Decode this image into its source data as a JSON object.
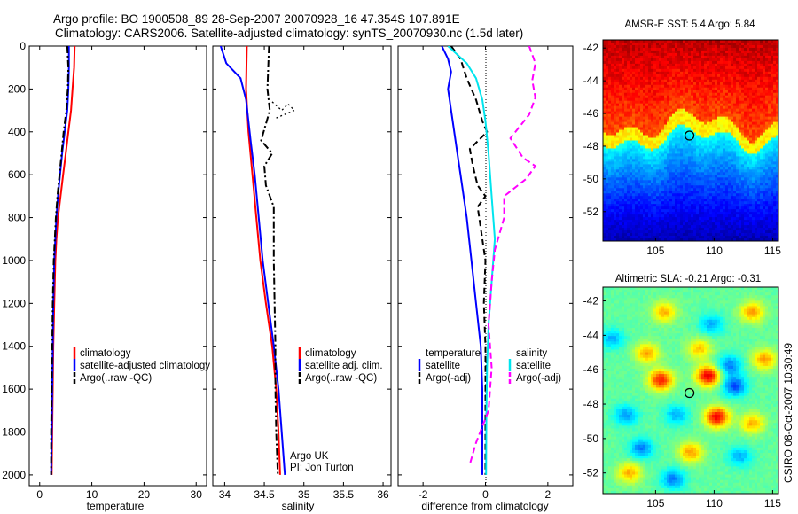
{
  "header": {
    "line1": "Argo profile: BO 1900508_89 28-Sep-2007 20070928_16 47.354S 107.891E",
    "line2": "Climatology: CARS2006. Satellite-adjusted climatology: synTS_20070930.nc (1.5d later)"
  },
  "credit": "CSIRO 08-Oct-2007 10:30:49",
  "colors": {
    "red": "#ff0000",
    "blue": "#0000ff",
    "black": "#000000",
    "cyan": "#00e5ee",
    "magenta": "#ff00ff"
  },
  "chart_data": [
    {
      "type": "line",
      "id": "temperature",
      "xlabel": "temperature",
      "ylabel": "",
      "xlim": [
        -2,
        32
      ],
      "ylim": [
        2050,
        0
      ],
      "xticks": [
        0,
        10,
        20,
        30
      ],
      "yticks": [
        0,
        200,
        400,
        600,
        800,
        1000,
        1200,
        1400,
        1600,
        1800,
        2000
      ],
      "legend_position": "lower-right",
      "legend": [
        "climatology",
        "satellite-adjusted climatology",
        "Argo(..raw -QC)"
      ],
      "series": [
        {
          "name": "climatology",
          "color": "red",
          "dash": "solid",
          "points": [
            [
              6.7,
              0
            ],
            [
              6.6,
              100
            ],
            [
              6.3,
              200
            ],
            [
              6.0,
              300
            ],
            [
              5.5,
              400
            ],
            [
              5.0,
              500
            ],
            [
              4.5,
              600
            ],
            [
              4.0,
              700
            ],
            [
              3.5,
              800
            ],
            [
              3.2,
              900
            ],
            [
              3.0,
              1000
            ],
            [
              2.8,
              1200
            ],
            [
              2.6,
              1400
            ],
            [
              2.5,
              1600
            ],
            [
              2.4,
              1800
            ],
            [
              2.3,
              2000
            ]
          ]
        },
        {
          "name": "satellite-adjusted climatology",
          "color": "blue",
          "dash": "solid",
          "points": [
            [
              5.6,
              0
            ],
            [
              5.6,
              100
            ],
            [
              5.5,
              200
            ],
            [
              5.3,
              300
            ],
            [
              4.8,
              400
            ],
            [
              4.3,
              500
            ],
            [
              3.9,
              600
            ],
            [
              3.5,
              700
            ],
            [
              3.2,
              800
            ],
            [
              3.0,
              900
            ],
            [
              2.8,
              1000
            ],
            [
              2.6,
              1200
            ],
            [
              2.5,
              1400
            ],
            [
              2.4,
              1600
            ],
            [
              2.3,
              1800
            ],
            [
              2.2,
              2000
            ]
          ]
        },
        {
          "name": "Argo(..raw -QC)",
          "color": "black",
          "dash": "dashdot",
          "points": [
            [
              5.3,
              0
            ],
            [
              5.5,
              100
            ],
            [
              5.4,
              200
            ],
            [
              5.1,
              300
            ],
            [
              4.6,
              400
            ],
            [
              4.2,
              500
            ],
            [
              3.8,
              600
            ],
            [
              3.4,
              700
            ],
            [
              3.1,
              800
            ],
            [
              2.9,
              900
            ],
            [
              2.7,
              1000
            ],
            [
              2.5,
              1200
            ],
            [
              2.4,
              1400
            ],
            [
              2.3,
              1600
            ],
            [
              2.2,
              1800
            ],
            [
              2.2,
              2000
            ]
          ]
        }
      ]
    },
    {
      "type": "line",
      "id": "salinity",
      "xlabel": "salinity",
      "ylabel": "",
      "xlim": [
        33.85,
        36.1
      ],
      "ylim": [
        2050,
        0
      ],
      "xticks": [
        34,
        34.5,
        35,
        35.5,
        36
      ],
      "legend_position": "lower-right",
      "legend": [
        "climatology",
        "satellite adj. clim.",
        "Argo(..raw -QC)"
      ],
      "annotations": [
        "Argo UK",
        "PI: Jon Turton"
      ],
      "series": [
        {
          "name": "climatology",
          "color": "red",
          "dash": "solid",
          "points": [
            [
              34.28,
              0
            ],
            [
              34.27,
              200
            ],
            [
              34.3,
              400
            ],
            [
              34.35,
              600
            ],
            [
              34.4,
              800
            ],
            [
              34.45,
              1000
            ],
            [
              34.52,
              1200
            ],
            [
              34.6,
              1400
            ],
            [
              34.65,
              1600
            ],
            [
              34.68,
              1800
            ],
            [
              34.7,
              2000
            ]
          ]
        },
        {
          "name": "satellite adj. clim.",
          "color": "blue",
          "dash": "solid",
          "points": [
            [
              33.95,
              0
            ],
            [
              34.02,
              80
            ],
            [
              34.2,
              150
            ],
            [
              34.27,
              250
            ],
            [
              34.3,
              350
            ],
            [
              34.33,
              450
            ],
            [
              34.38,
              600
            ],
            [
              34.43,
              800
            ],
            [
              34.48,
              1000
            ],
            [
              34.55,
              1200
            ],
            [
              34.62,
              1400
            ],
            [
              34.68,
              1600
            ],
            [
              34.72,
              1800
            ],
            [
              34.76,
              2000
            ]
          ]
        },
        {
          "name": "Argo(..raw -QC)",
          "color": "black",
          "dash": "dashdot",
          "points": [
            [
              34.56,
              0
            ],
            [
              34.55,
              100
            ],
            [
              34.54,
              200
            ],
            [
              34.57,
              300
            ],
            [
              34.46,
              440
            ],
            [
              34.6,
              500
            ],
            [
              34.5,
              560
            ],
            [
              34.52,
              650
            ],
            [
              34.62,
              750
            ],
            [
              34.62,
              1000
            ],
            [
              34.63,
              1200
            ],
            [
              34.64,
              1400
            ],
            [
              34.64,
              1600
            ],
            [
              34.65,
              1800
            ],
            [
              34.67,
              2000
            ]
          ]
        },
        {
          "name": "",
          "color": "black",
          "dash": "dotted",
          "points": [
            [
              34.6,
              260
            ],
            [
              34.72,
              300
            ],
            [
              34.8,
              270
            ],
            [
              34.88,
              300
            ],
            [
              34.75,
              320
            ],
            [
              34.62,
              340
            ]
          ]
        }
      ]
    },
    {
      "type": "line",
      "id": "difference",
      "xlabel": "difference from climatology",
      "ylabel": "",
      "xlim": [
        -2.8,
        2.8
      ],
      "ylim": [
        2050,
        0
      ],
      "xticks": [
        -2,
        0,
        2
      ],
      "legend_position": "lower-left",
      "legend_groups": [
        {
          "title": "temperature",
          "items": [
            "satellite",
            "Argo(-adj)"
          ]
        },
        {
          "title": "salinity",
          "items": [
            "satellite",
            "Argo(-adj)"
          ]
        }
      ],
      "series": [
        {
          "name": "satellite",
          "group": "temperature",
          "color": "blue",
          "dash": "solid",
          "points": [
            [
              -1.4,
              0
            ],
            [
              -1.2,
              60
            ],
            [
              -1.1,
              120
            ],
            [
              -1.2,
              200
            ],
            [
              -1.1,
              300
            ],
            [
              -1.0,
              400
            ],
            [
              -0.9,
              500
            ],
            [
              -0.8,
              600
            ],
            [
              -0.7,
              700
            ],
            [
              -0.6,
              800
            ],
            [
              -0.45,
              1000
            ],
            [
              -0.3,
              1200
            ],
            [
              -0.15,
              1400
            ],
            [
              -0.1,
              1600
            ],
            [
              -0.1,
              1800
            ],
            [
              -0.1,
              2000
            ]
          ]
        },
        {
          "name": "Argo(-adj)",
          "group": "temperature",
          "color": "black",
          "dash": "dashed",
          "points": [
            [
              -1.1,
              0
            ],
            [
              -0.8,
              60
            ],
            [
              -0.6,
              150
            ],
            [
              -0.3,
              250
            ],
            [
              -0.1,
              350
            ],
            [
              0.05,
              400
            ],
            [
              -0.5,
              480
            ],
            [
              -0.4,
              560
            ],
            [
              -0.25,
              650
            ],
            [
              0.0,
              700
            ],
            [
              -0.25,
              750
            ],
            [
              -0.1,
              900
            ],
            [
              0.0,
              1000
            ],
            [
              -0.05,
              1200
            ],
            [
              0.0,
              1400
            ],
            [
              0.0,
              1600
            ],
            [
              0.0,
              2000
            ]
          ]
        },
        {
          "name": "satellite",
          "group": "salinity",
          "color": "cyan",
          "dash": "solid",
          "points": [
            [
              -1.2,
              0
            ],
            [
              -0.9,
              40
            ],
            [
              -0.6,
              80
            ],
            [
              -0.3,
              150
            ],
            [
              -0.1,
              250
            ],
            [
              0.0,
              350
            ],
            [
              0.1,
              500
            ],
            [
              0.2,
              700
            ],
            [
              0.3,
              900
            ],
            [
              0.25,
              1000
            ],
            [
              0.2,
              1100
            ],
            [
              0.1,
              1300
            ],
            [
              0.05,
              1500
            ],
            [
              0.03,
              1700
            ],
            [
              0.02,
              2000
            ]
          ]
        },
        {
          "name": "Argo(-adj)",
          "group": "salinity",
          "color": "magenta",
          "dash": "dashed",
          "points": [
            [
              1.4,
              0
            ],
            [
              1.6,
              80
            ],
            [
              1.5,
              160
            ],
            [
              1.6,
              240
            ],
            [
              1.4,
              320
            ],
            [
              0.8,
              430
            ],
            [
              1.2,
              520
            ],
            [
              1.6,
              560
            ],
            [
              1.3,
              620
            ],
            [
              0.6,
              700
            ],
            [
              0.6,
              800
            ],
            [
              0.3,
              950
            ],
            [
              0.2,
              1100
            ],
            [
              0.1,
              1300
            ],
            [
              0.2,
              1500
            ],
            [
              0.1,
              1700
            ],
            [
              -0.3,
              1850
            ],
            [
              -0.5,
              1950
            ]
          ]
        }
      ]
    },
    {
      "type": "heatmap",
      "id": "sst",
      "title": "AMSR-E SST: 5.4 Argo: 5.84",
      "xlim": [
        100.5,
        115.5
      ],
      "ylim": [
        -53.8,
        -41.5
      ],
      "xticks": [
        105,
        110,
        115
      ],
      "yticks": [
        -42,
        -44,
        -46,
        -48,
        -50,
        -52
      ],
      "marker": [
        107.891,
        -47.354
      ]
    },
    {
      "type": "heatmap",
      "id": "sla",
      "title": "Altimetric SLA: -0.21 Argo: -0.31",
      "xlim": [
        100.5,
        115.5
      ],
      "ylim": [
        -53.2,
        -41.2
      ],
      "xticks": [
        105,
        110,
        115
      ],
      "yticks": [
        -42,
        -44,
        -46,
        -48,
        -50,
        -52
      ],
      "marker": [
        107.891,
        -47.354
      ]
    }
  ]
}
